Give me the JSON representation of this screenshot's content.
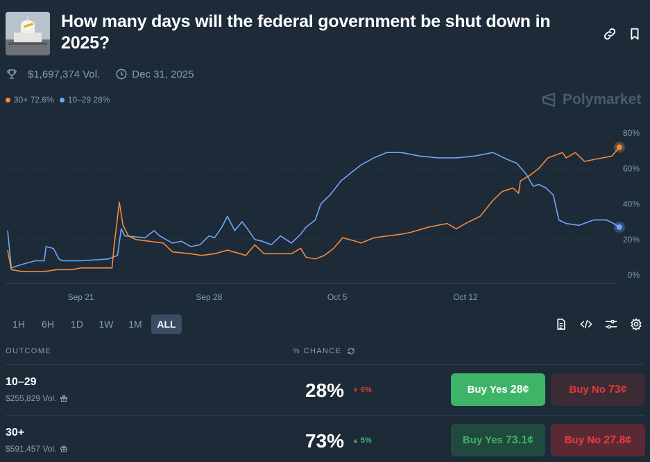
{
  "market": {
    "title": "How many days will the federal government be shut down in 2025?",
    "volume": "$1,697,374 Vol.",
    "end_date": "Dec 31, 2025"
  },
  "legend": [
    {
      "label": "30+ 72.6%",
      "color": "#f48a3b"
    },
    {
      "label": "10–29 28%",
      "color": "#6fa7f5"
    }
  ],
  "brand": "Polymarket",
  "colors": {
    "background": "#1d2b39",
    "orange": "#f48a3b",
    "blue": "#6fa7f5",
    "green": "#3db468",
    "red": "#e64800"
  },
  "chart_data": {
    "type": "line",
    "x_ticks": [
      "Sep 21",
      "Sep 28",
      "Oct 5",
      "Oct 12"
    ],
    "y_ticks": [
      "80%",
      "60%",
      "40%",
      "20%",
      "0%"
    ],
    "ylim": [
      0,
      80
    ],
    "grid": true,
    "x_range_days": [
      "Sep 17",
      "Oct 16"
    ],
    "series": [
      {
        "name": "30+",
        "color": "#f48a3b",
        "points": [
          [
            0,
            14
          ],
          [
            0.2,
            3
          ],
          [
            0.8,
            2
          ],
          [
            2,
            2
          ],
          [
            2.7,
            3
          ],
          [
            3.5,
            3
          ],
          [
            4,
            4
          ],
          [
            5.7,
            4
          ],
          [
            5.8,
            15
          ],
          [
            6.1,
            41
          ],
          [
            6.3,
            28
          ],
          [
            6.6,
            22
          ],
          [
            7,
            20
          ],
          [
            8.5,
            18
          ],
          [
            9,
            13
          ],
          [
            10,
            12
          ],
          [
            10.6,
            11
          ],
          [
            11.3,
            12
          ],
          [
            12,
            14
          ],
          [
            12.7,
            12
          ],
          [
            13,
            11
          ],
          [
            13.5,
            17
          ],
          [
            14,
            12
          ],
          [
            15.5,
            12
          ],
          [
            16,
            15
          ],
          [
            16.3,
            10
          ],
          [
            16.8,
            9
          ],
          [
            17.3,
            11
          ],
          [
            17.8,
            15
          ],
          [
            18.3,
            21
          ],
          [
            19,
            19
          ],
          [
            19.3,
            18
          ],
          [
            20,
            21
          ],
          [
            21.5,
            23
          ],
          [
            22,
            24
          ],
          [
            23,
            27
          ],
          [
            24,
            29
          ],
          [
            24.5,
            26
          ],
          [
            25,
            29
          ],
          [
            25.8,
            33
          ],
          [
            26.5,
            42
          ],
          [
            27,
            47
          ],
          [
            27.6,
            49
          ],
          [
            27.9,
            46
          ],
          [
            28,
            53
          ],
          [
            28.5,
            56
          ],
          [
            29,
            60
          ],
          [
            29.5,
            66
          ],
          [
            30.3,
            69
          ],
          [
            30.5,
            66
          ],
          [
            31,
            69
          ],
          [
            31.5,
            64
          ],
          [
            32,
            65
          ],
          [
            33,
            67
          ],
          [
            33.4,
            72
          ]
        ]
      },
      {
        "name": "10–29",
        "color": "#6fa7f5",
        "points": [
          [
            0,
            25
          ],
          [
            0.2,
            4
          ],
          [
            0.8,
            6
          ],
          [
            1.5,
            8
          ],
          [
            2,
            8
          ],
          [
            2.1,
            16
          ],
          [
            2.5,
            15
          ],
          [
            2.8,
            9
          ],
          [
            3,
            8
          ],
          [
            4,
            8
          ],
          [
            5.5,
            9
          ],
          [
            6,
            11
          ],
          [
            6.2,
            26
          ],
          [
            6.4,
            22
          ],
          [
            7.5,
            21
          ],
          [
            8,
            25
          ],
          [
            8.3,
            22
          ],
          [
            9,
            18
          ],
          [
            9.5,
            19
          ],
          [
            10,
            16
          ],
          [
            10.5,
            17
          ],
          [
            11,
            22
          ],
          [
            11.3,
            21
          ],
          [
            11.7,
            27
          ],
          [
            12,
            33
          ],
          [
            12.4,
            25
          ],
          [
            12.8,
            30
          ],
          [
            13.1,
            26
          ],
          [
            13.5,
            20
          ],
          [
            13.9,
            19
          ],
          [
            14.4,
            17
          ],
          [
            14.9,
            22
          ],
          [
            15.5,
            18
          ],
          [
            16,
            23
          ],
          [
            16.3,
            27
          ],
          [
            16.8,
            31
          ],
          [
            17.1,
            40
          ],
          [
            17.6,
            45
          ],
          [
            18.2,
            53
          ],
          [
            18.8,
            58
          ],
          [
            19.3,
            62
          ],
          [
            20,
            66
          ],
          [
            20.7,
            69
          ],
          [
            21.5,
            69
          ],
          [
            22.5,
            67
          ],
          [
            23.5,
            66
          ],
          [
            24.5,
            66
          ],
          [
            25.5,
            67
          ],
          [
            26.5,
            69
          ],
          [
            27.3,
            65
          ],
          [
            27.8,
            63
          ],
          [
            28.3,
            57
          ],
          [
            28.7,
            50
          ],
          [
            29,
            51
          ],
          [
            29.4,
            49
          ],
          [
            29.8,
            45
          ],
          [
            30.1,
            31
          ],
          [
            30.5,
            29
          ],
          [
            31.2,
            28
          ],
          [
            32,
            31
          ],
          [
            32.7,
            31
          ],
          [
            33.1,
            29
          ],
          [
            33.4,
            27
          ]
        ]
      }
    ]
  },
  "ranges": [
    "1H",
    "6H",
    "1D",
    "1W",
    "1M",
    "ALL"
  ],
  "table": {
    "col_outcome": "OUTCOME",
    "col_chance": "% CHANCE"
  },
  "outcomes": [
    {
      "name": "10–29",
      "volume": "$255,829 Vol.",
      "chance": "28%",
      "delta": "6%",
      "delta_dir": "down",
      "buy_yes_label": "Buy Yes",
      "buy_yes_price": "28¢",
      "buy_no_label": "Buy No",
      "buy_no_price": "73¢"
    },
    {
      "name": "30+",
      "volume": "$591,457 Vol.",
      "chance": "73%",
      "delta": "5%",
      "delta_dir": "up",
      "buy_yes_label": "Buy Yes",
      "buy_yes_price": "73.1¢",
      "buy_no_label": "Buy No",
      "buy_no_price": "27.8¢"
    }
  ]
}
